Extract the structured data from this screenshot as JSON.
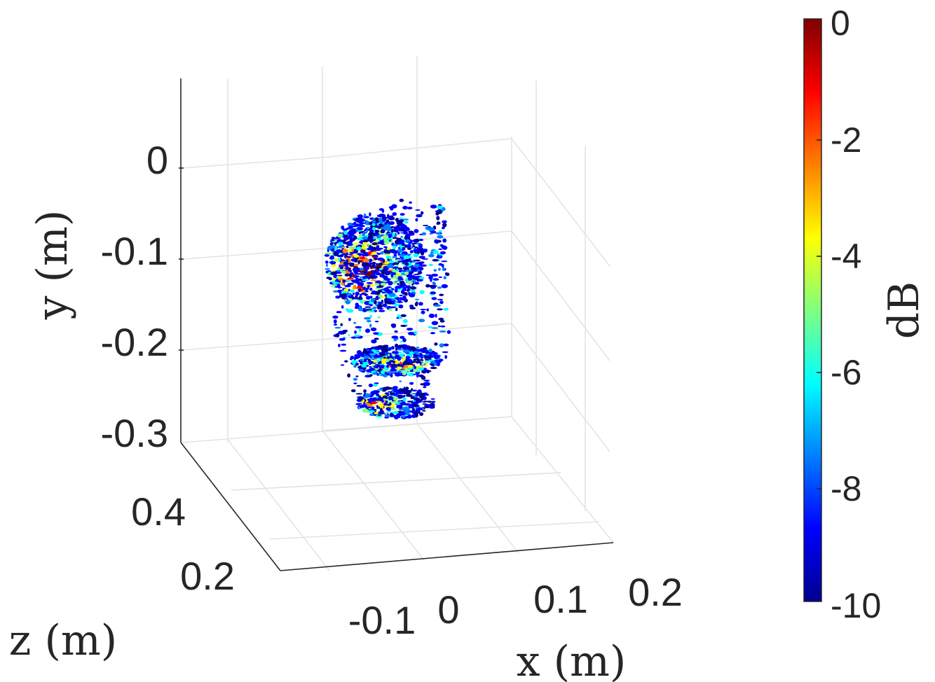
{
  "chart_data": {
    "type": "scatter",
    "plot_kind": "3d volumetric radar image (isosurface scatter)",
    "axes": {
      "x": {
        "label": "x (m)",
        "ticks": [
          "-0.1",
          "0",
          "0.1",
          "0.2"
        ],
        "range": [
          -0.2,
          0.2
        ]
      },
      "y": {
        "label": "y (m)",
        "ticks": [
          "0",
          "-0.1",
          "-0.2",
          "-0.3"
        ],
        "range": [
          -0.3,
          0.05
        ]
      },
      "z": {
        "label": "z (m)",
        "ticks": [
          "0.4",
          "0.2"
        ],
        "range": [
          0.1,
          0.5
        ]
      }
    },
    "colorbar": {
      "label": "dB",
      "ticks": [
        "0",
        "-2",
        "-4",
        "-6",
        "-8",
        "-10"
      ],
      "range": [
        -10,
        0
      ],
      "colormap": "jet"
    },
    "grid": true,
    "colors": {
      "jet": [
        "#00008f",
        "#0000ff",
        "#0080ff",
        "#00ffff",
        "#80ff80",
        "#ffff00",
        "#ff8000",
        "#ff0000",
        "#800000"
      ]
    }
  }
}
